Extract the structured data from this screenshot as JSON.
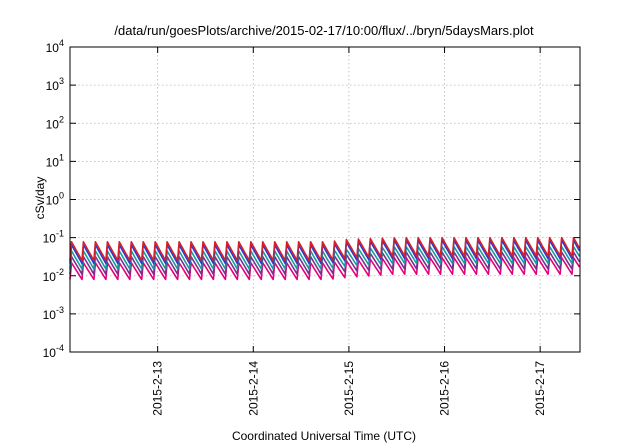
{
  "chart_data": {
    "type": "line",
    "title": "/data/run/goesPlots/archive/2015-02-17/10:00/flux/../bryn/5daysMars.plot",
    "xlabel": "Coordinated Universal Time (UTC)",
    "ylabel": "cSv/day",
    "y_scale": "log",
    "ylim": [
      0.0001,
      10000
    ],
    "y_ticks": [
      {
        "base": "10",
        "exp": "-4",
        "value": 0.0001
      },
      {
        "base": "10",
        "exp": "-3",
        "value": 0.001
      },
      {
        "base": "10",
        "exp": "-2",
        "value": 0.01
      },
      {
        "base": "10",
        "exp": "-1",
        "value": 0.1
      },
      {
        "base": "10",
        "exp": "0",
        "value": 1
      },
      {
        "base": "10",
        "exp": "1",
        "value": 10
      },
      {
        "base": "10",
        "exp": "2",
        "value": 100
      },
      {
        "base": "10",
        "exp": "3",
        "value": 1000
      },
      {
        "base": "10",
        "exp": "4",
        "value": 10000
      }
    ],
    "xlim": [
      "2015-02-12T02:00",
      "2015-02-17T10:00"
    ],
    "x_ticks": [
      {
        "label": "2015-2-13",
        "value": "2015-02-13T00:00"
      },
      {
        "label": "2015-2-14",
        "value": "2015-02-14T00:00"
      },
      {
        "label": "2015-2-15",
        "value": "2015-02-15T00:00"
      },
      {
        "label": "2015-2-16",
        "value": "2015-02-16T00:00"
      },
      {
        "label": "2015-2-17",
        "value": "2015-02-17T00:00"
      }
    ],
    "grid": true,
    "sawtooth_cycles_per_day": 8,
    "series": [
      {
        "color": "#e4007c",
        "peak": [
          0.022,
          0.022,
          0.025,
          0.03,
          0.03,
          0.03
        ],
        "trough": [
          0.008,
          0.008,
          0.009,
          0.011,
          0.011,
          0.011
        ]
      },
      {
        "color": "#7a2e8e",
        "peak": [
          0.032,
          0.032,
          0.036,
          0.042,
          0.042,
          0.042
        ],
        "trough": [
          0.011,
          0.011,
          0.013,
          0.015,
          0.015,
          0.015
        ]
      },
      {
        "color": "#1a9a9a",
        "peak": [
          0.045,
          0.045,
          0.05,
          0.058,
          0.058,
          0.058
        ],
        "trough": [
          0.015,
          0.015,
          0.018,
          0.021,
          0.021,
          0.021
        ]
      },
      {
        "color": "#2a3ad4",
        "peak": [
          0.065,
          0.065,
          0.075,
          0.085,
          0.085,
          0.085
        ],
        "trough": [
          0.021,
          0.021,
          0.025,
          0.028,
          0.028,
          0.028
        ]
      },
      {
        "color": "#d4202a",
        "peak": [
          0.078,
          0.078,
          0.09,
          0.1,
          0.1,
          0.1
        ],
        "trough": [
          0.025,
          0.025,
          0.029,
          0.033,
          0.033,
          0.033
        ]
      }
    ],
    "series_level_knots_days": [
      0,
      2.7,
      2.9,
      3.4,
      3.6,
      5.4
    ]
  }
}
